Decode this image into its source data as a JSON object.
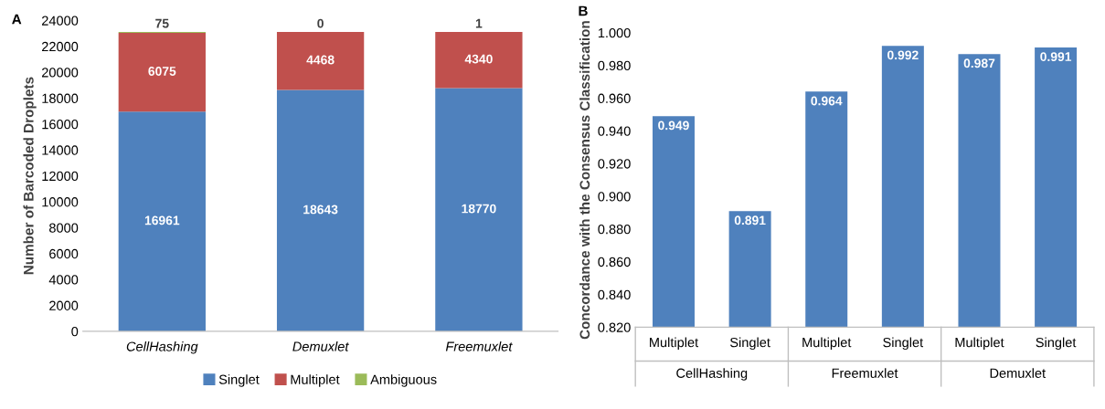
{
  "chart_data": [
    {
      "type": "bar",
      "title": "A",
      "ylabel": "Number of Barcoded Droplets",
      "categories": [
        "CellHashing",
        "Demuxlet",
        "Freemuxlet"
      ],
      "stacked": true,
      "data_labels": true,
      "legend": "bottom",
      "grid": false,
      "series": [
        {
          "name": "Singlet",
          "color": "#4f81bd",
          "values": [
            16961,
            18643,
            18770
          ]
        },
        {
          "name": "Multiplet",
          "color": "#c0504d",
          "values": [
            6075,
            4468,
            4340
          ]
        },
        {
          "name": "Ambiguous",
          "color": "#9bbb59",
          "values": [
            75,
            0,
            1
          ]
        }
      ],
      "ylim": [
        0,
        24000
      ],
      "yticks": [
        0,
        2000,
        4000,
        6000,
        8000,
        10000,
        12000,
        14000,
        16000,
        18000,
        20000,
        22000,
        24000
      ]
    },
    {
      "type": "bar",
      "title": "B",
      "ylabel": "Concordance with the Consensus Classification",
      "categories": [
        "Multiplet",
        "Singlet",
        "Multiplet",
        "Singlet",
        "Multiplet",
        "Singlet"
      ],
      "annotations": [
        "CellHashing",
        "Freemuxlet",
        "Demuxlet"
      ],
      "data_labels": true,
      "grid": false,
      "series": [
        {
          "color": "#4f81bd",
          "values": [
            0.949,
            0.891,
            0.964,
            0.992,
            0.987,
            0.991
          ]
        }
      ],
      "ylim": [
        0.82,
        1.0
      ],
      "yticks": [
        {
          "value": 0.82,
          "label": "0.820"
        },
        {
          "value": 0.84,
          "label": "0.840"
        },
        {
          "value": 0.86,
          "label": "0.860"
        },
        {
          "value": 0.88,
          "label": "0.880"
        },
        {
          "value": 0.9,
          "label": "0.900"
        },
        {
          "value": 0.92,
          "label": "0.920"
        },
        {
          "value": 0.94,
          "label": "0.940"
        },
        {
          "value": 0.96,
          "label": "0.960"
        },
        {
          "value": 0.98,
          "label": "0.980"
        },
        {
          "value": 1.0,
          "label": "1.000"
        }
      ]
    }
  ]
}
